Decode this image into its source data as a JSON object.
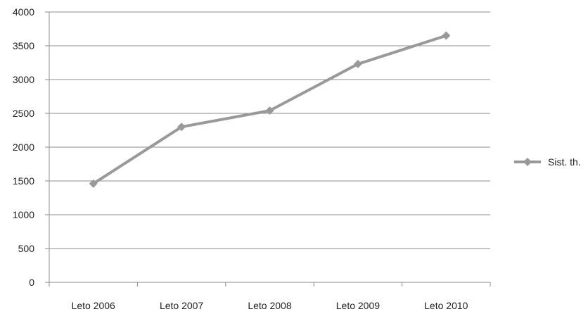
{
  "chart_data": {
    "type": "line",
    "categories": [
      "Leto 2006",
      "Leto 2007",
      "Leto 2008",
      "Leto 2009",
      "Leto 2010"
    ],
    "series": [
      {
        "name": "Sist. th.",
        "values": [
          1460,
          2300,
          2540,
          3230,
          3650
        ],
        "color": "#999999",
        "marker": "diamond"
      }
    ],
    "ylim": [
      0,
      4000
    ],
    "yticks": [
      0,
      500,
      1000,
      1500,
      2000,
      2500,
      3000,
      3500,
      4000
    ],
    "grid": "horizontal",
    "legend": "right",
    "title": "",
    "xlabel": "",
    "ylabel": ""
  }
}
